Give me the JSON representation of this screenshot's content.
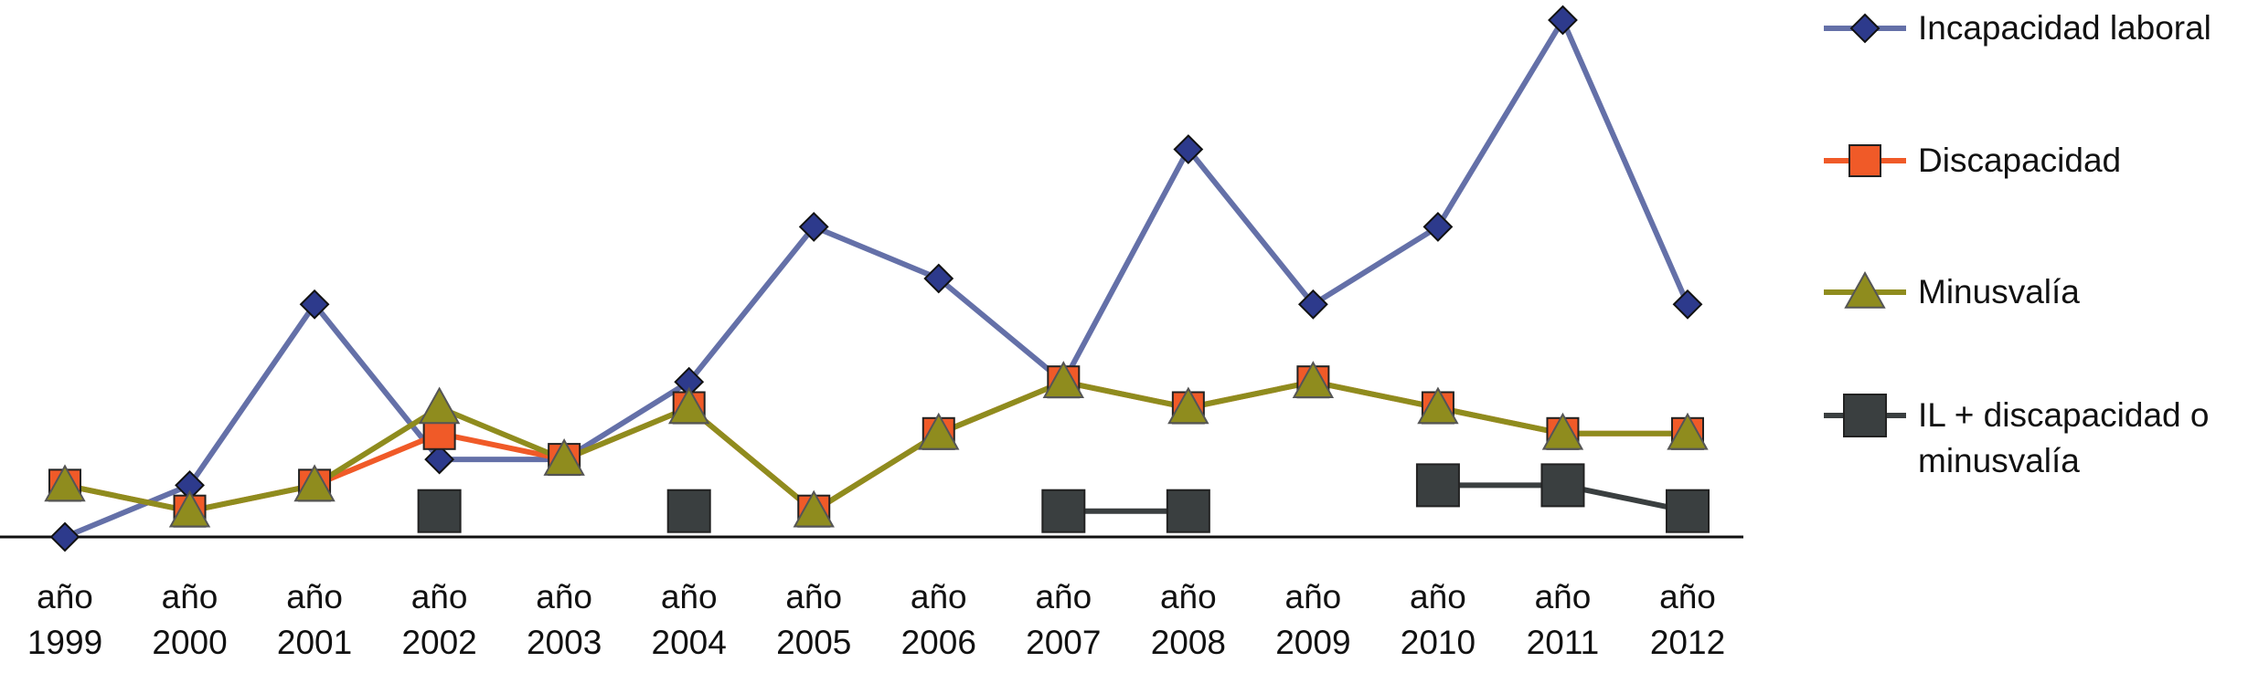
{
  "chart_data": {
    "type": "line",
    "categories": [
      "año 1999",
      "año 2000",
      "año 2001",
      "año 2002",
      "año 2003",
      "año 2004",
      "año 2005",
      "año 2006",
      "año 2007",
      "año 2008",
      "año 2009",
      "año 2010",
      "año 2011",
      "año 2012"
    ],
    "ylim": [
      0,
      20
    ],
    "legend": "right",
    "series": [
      {
        "name": "Incapacidad laboral",
        "color": "#6470a8",
        "marker_color": "#2d3a8c",
        "marker": "diamond",
        "values": [
          0,
          2,
          9,
          3,
          3,
          6,
          12,
          10,
          6,
          15,
          9,
          12,
          20,
          9
        ]
      },
      {
        "name": "Discapacidad",
        "color": "#f05a28",
        "marker_color": "#f05a28",
        "marker": "square",
        "values": [
          2,
          1,
          2,
          4,
          3,
          5,
          1,
          4,
          6,
          5,
          6,
          5,
          4,
          4
        ]
      },
      {
        "name": "Minusvalía",
        "color": "#8f8c1e",
        "marker_color": "#8f8c1e",
        "marker": "triangle",
        "values": [
          2,
          1,
          2,
          5,
          3,
          5,
          1,
          4,
          6,
          5,
          6,
          5,
          4,
          4
        ]
      },
      {
        "name": "IL + discapacidad o minusvalía",
        "color": "#3a3f40",
        "marker_color": "#3a3f40",
        "marker": "bigsquare",
        "values": [
          null,
          null,
          null,
          1,
          null,
          1,
          null,
          null,
          1,
          1,
          null,
          2,
          2,
          1
        ]
      }
    ]
  }
}
